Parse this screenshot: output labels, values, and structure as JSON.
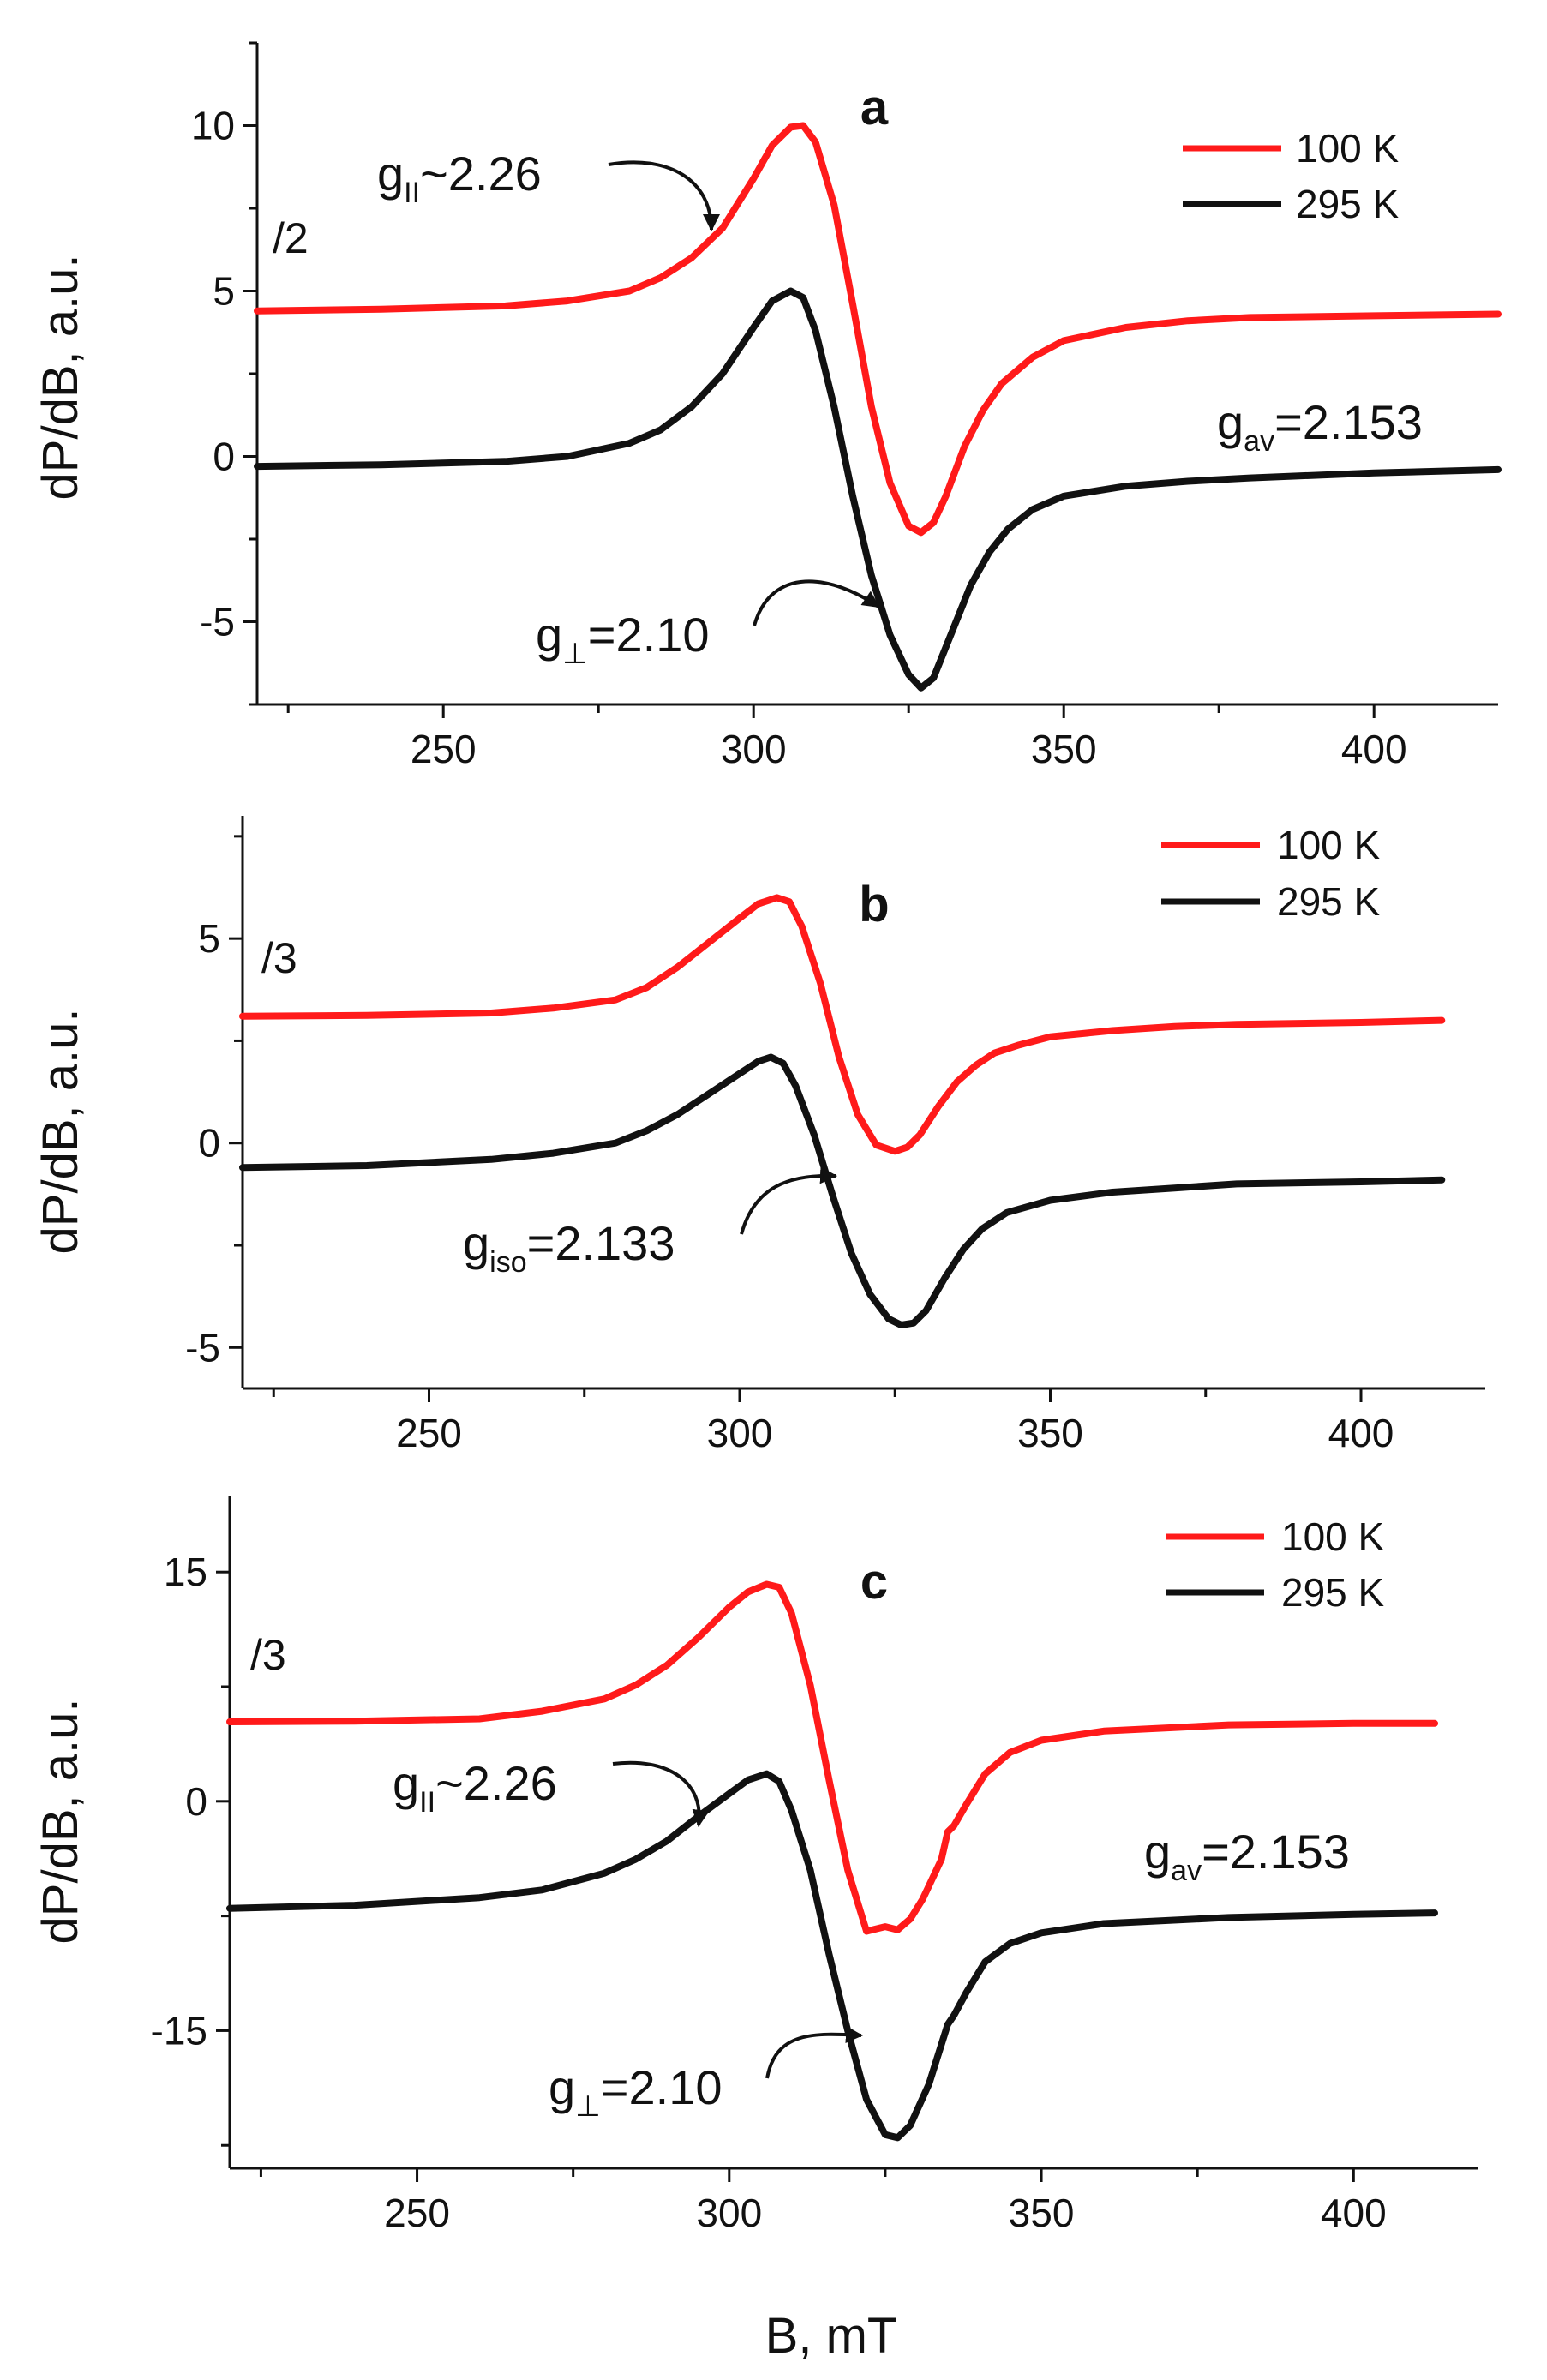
{
  "chart_data": [
    {
      "type": "line",
      "panel": "a",
      "xlabel": "B, mT",
      "ylabel": "dP/dB, a.u.",
      "xlim": [
        220,
        420
      ],
      "ylim": [
        -7.5,
        12.5
      ],
      "xticks": [
        250,
        300,
        350,
        400
      ],
      "yticks": [
        -5,
        0,
        5,
        10
      ],
      "ytick_labels": [
        "-5",
        "0",
        "5",
        "10"
      ],
      "divisor_label": "/2",
      "legend_position": "top-right",
      "series": [
        {
          "name": "100 K",
          "color": "#ff1a1a",
          "x": [
            220,
            240,
            260,
            270,
            280,
            285,
            290,
            295,
            300,
            303,
            306,
            308,
            310,
            313,
            316,
            319,
            322,
            325,
            327,
            329,
            331,
            334,
            337,
            340,
            345,
            350,
            360,
            370,
            380,
            400,
            420
          ],
          "y": [
            4.4,
            4.45,
            4.55,
            4.7,
            5.0,
            5.4,
            6.0,
            6.9,
            8.4,
            9.4,
            9.95,
            10.0,
            9.5,
            7.6,
            4.6,
            1.5,
            -0.8,
            -2.1,
            -2.3,
            -2.0,
            -1.2,
            0.3,
            1.4,
            2.2,
            3.0,
            3.5,
            3.9,
            4.1,
            4.2,
            4.25,
            4.3
          ]
        },
        {
          "name": "295 K",
          "color": "#111111",
          "x": [
            220,
            240,
            260,
            270,
            280,
            285,
            290,
            295,
            300,
            303,
            306,
            308,
            310,
            313,
            316,
            319,
            322,
            325,
            327,
            329,
            332,
            335,
            338,
            341,
            345,
            350,
            360,
            370,
            380,
            400,
            420
          ],
          "y": [
            -0.3,
            -0.25,
            -0.15,
            0.0,
            0.4,
            0.8,
            1.5,
            2.5,
            3.9,
            4.7,
            5.0,
            4.8,
            3.8,
            1.5,
            -1.2,
            -3.6,
            -5.4,
            -6.6,
            -7.0,
            -6.7,
            -5.3,
            -3.9,
            -2.9,
            -2.2,
            -1.6,
            -1.2,
            -0.9,
            -0.75,
            -0.65,
            -0.5,
            -0.4
          ]
        }
      ],
      "annotations": [
        {
          "main": "g",
          "sub": "II",
          "value": "~2.26",
          "x": 294,
          "y": 6.8
        },
        {
          "main": "g",
          "sub": "av",
          "value": "=2.153"
        },
        {
          "main": "g",
          "sub": "⊥",
          "value": "=2.10",
          "x": 322,
          "y": -5.0
        }
      ]
    },
    {
      "type": "line",
      "panel": "b",
      "xlabel": "",
      "ylabel": "dP/dB, a.u.",
      "xlim": [
        220,
        420
      ],
      "ylim": [
        -6,
        8
      ],
      "xticks": [
        250,
        300,
        350,
        400
      ],
      "yticks": [
        -5,
        0,
        5
      ],
      "ytick_labels": [
        "-5",
        "0",
        "5"
      ],
      "divisor_label": "/3",
      "legend_position": "top-right",
      "series": [
        {
          "name": "100 K",
          "color": "#ff1a1a",
          "x": [
            220,
            240,
            260,
            270,
            280,
            285,
            290,
            295,
            300,
            303,
            306,
            308,
            310,
            313,
            316,
            319,
            322,
            325,
            327,
            329,
            332,
            335,
            338,
            341,
            345,
            350,
            360,
            370,
            380,
            400,
            413
          ],
          "y": [
            3.1,
            3.12,
            3.18,
            3.3,
            3.5,
            3.8,
            4.3,
            4.9,
            5.5,
            5.85,
            6.0,
            5.9,
            5.3,
            3.9,
            2.1,
            0.7,
            -0.05,
            -0.2,
            -0.1,
            0.2,
            0.9,
            1.5,
            1.9,
            2.2,
            2.4,
            2.6,
            2.75,
            2.85,
            2.9,
            2.95,
            3.0
          ]
        },
        {
          "name": "295 K",
          "color": "#111111",
          "x": [
            220,
            240,
            260,
            270,
            280,
            285,
            290,
            295,
            300,
            303,
            305,
            307,
            309,
            312,
            315,
            318,
            321,
            324,
            326,
            328,
            330,
            333,
            336,
            339,
            343,
            350,
            360,
            370,
            380,
            400,
            413
          ],
          "y": [
            -0.6,
            -0.55,
            -0.4,
            -0.25,
            0.0,
            0.3,
            0.7,
            1.2,
            1.7,
            2.0,
            2.1,
            1.95,
            1.4,
            0.2,
            -1.3,
            -2.7,
            -3.7,
            -4.3,
            -4.45,
            -4.4,
            -4.1,
            -3.3,
            -2.6,
            -2.1,
            -1.7,
            -1.4,
            -1.2,
            -1.1,
            -1.0,
            -0.95,
            -0.9
          ]
        }
      ],
      "annotations": [
        {
          "main": "g",
          "sub": "iso",
          "value": "=2.133",
          "x": 316,
          "y": -0.9
        }
      ]
    },
    {
      "type": "line",
      "panel": "c",
      "xlabel": "B, mT",
      "ylabel": "dP/dB, a.u.",
      "xlim": [
        220,
        420
      ],
      "ylim": [
        -24,
        20
      ],
      "xticks": [
        250,
        300,
        350,
        400
      ],
      "yticks": [
        -15,
        0,
        15
      ],
      "ytick_labels": [
        "-15",
        "0",
        "15"
      ],
      "divisor_label": "/3",
      "legend_position": "top-right",
      "series": [
        {
          "name": "100 K",
          "color": "#ff1a1a",
          "x": [
            220,
            240,
            260,
            270,
            280,
            285,
            290,
            295,
            300,
            303,
            306,
            308,
            310,
            313,
            316,
            319,
            322,
            325,
            327,
            329,
            331,
            334,
            335,
            336,
            338,
            341,
            345,
            350,
            360,
            380,
            400,
            413
          ],
          "y": [
            5.2,
            5.25,
            5.4,
            5.9,
            6.7,
            7.6,
            8.9,
            10.7,
            12.7,
            13.7,
            14.2,
            14.0,
            12.3,
            7.6,
            1.4,
            -4.5,
            -8.5,
            -8.2,
            -8.4,
            -7.7,
            -6.4,
            -3.8,
            -2.0,
            -1.6,
            -0.2,
            1.8,
            3.2,
            4.0,
            4.6,
            5.0,
            5.1,
            5.1
          ]
        },
        {
          "name": "295 K",
          "color": "#111111",
          "x": [
            220,
            240,
            260,
            270,
            280,
            285,
            290,
            295,
            300,
            303,
            306,
            308,
            310,
            313,
            316,
            319,
            322,
            325,
            327,
            329,
            332,
            334,
            335,
            336,
            338,
            341,
            345,
            350,
            360,
            380,
            400,
            413
          ],
          "y": [
            -7.0,
            -6.8,
            -6.3,
            -5.8,
            -4.7,
            -3.8,
            -2.6,
            -1.0,
            0.5,
            1.4,
            1.8,
            1.3,
            -0.6,
            -4.5,
            -10.0,
            -15.0,
            -19.5,
            -21.8,
            -22.0,
            -21.2,
            -18.5,
            -15.9,
            -14.6,
            -14.0,
            -12.5,
            -10.5,
            -9.3,
            -8.6,
            -8.0,
            -7.6,
            -7.4,
            -7.3
          ]
        }
      ],
      "annotations": [
        {
          "main": "g",
          "sub": "II",
          "value": "~2.26",
          "x": 295,
          "y": -1.5
        },
        {
          "main": "g",
          "sub": "av",
          "value": "=2.153"
        },
        {
          "main": "g",
          "sub": "⊥",
          "value": "=2.10",
          "x": 322,
          "y": -16.0
        }
      ]
    }
  ]
}
